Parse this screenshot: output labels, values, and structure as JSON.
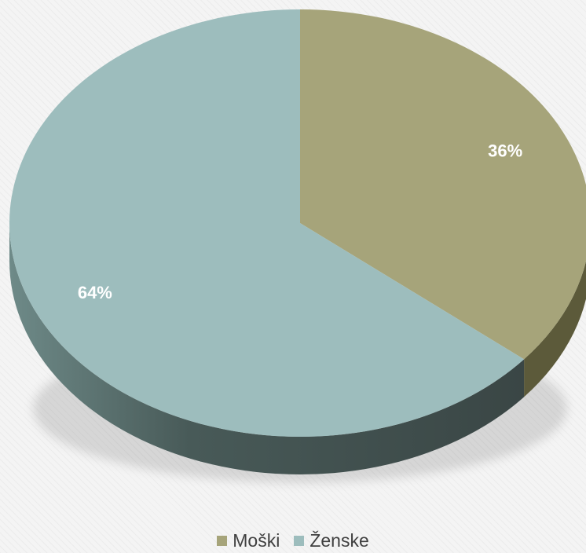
{
  "chart_data": {
    "type": "pie",
    "style": "3d",
    "categories": [
      "Moški",
      "Ženske"
    ],
    "values": [
      36,
      64
    ],
    "labels": [
      "36%",
      "64%"
    ],
    "colors": {
      "Moški": "#a6a47a",
      "Ženske": "#9dbdbd",
      "Moški_side": "#5c5a3a",
      "Ženske_side": "#4a5b5a"
    },
    "legend": {
      "position": "bottom",
      "entries": [
        "Moški",
        "Ženske"
      ]
    }
  }
}
